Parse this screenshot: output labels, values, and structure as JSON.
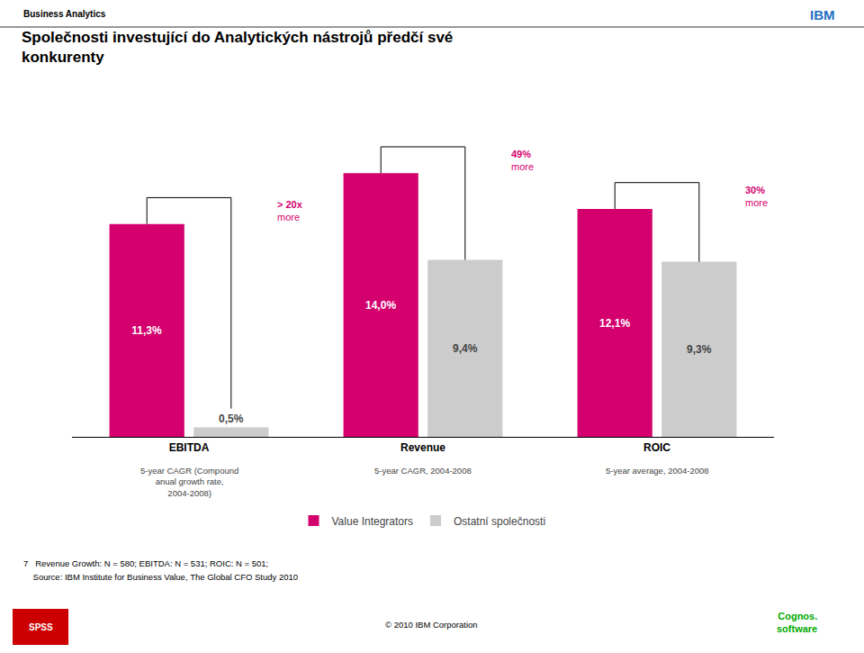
{
  "chart_data": {
    "type": "bar",
    "title": "Společnosti investující do Analytických nástrojů předčí své\nkonkurenty",
    "header": "Business Analytics",
    "categories": [
      "EBITDA",
      "Revenue",
      "ROIC"
    ],
    "category_notes": [
      "5-year CAGR (Compound\nanual growth rate,\n2004-2008)",
      "5-year CAGR, 2004-2008",
      "5-year average, 2004-2008"
    ],
    "series": [
      {
        "name": "Value Integrators",
        "color": "#d4006e",
        "values": [
          11.3,
          14.0,
          12.1
        ],
        "value_labels": [
          "11,3%",
          "14,0%",
          "12,1%"
        ]
      },
      {
        "name": "Ostatní společnosti",
        "color": "#cccccc",
        "values": [
          0.5,
          9.4,
          9.3
        ],
        "value_labels": [
          "0,5%",
          "9,4%",
          "9,3%"
        ]
      }
    ],
    "annotations": [
      "> 20x\nmore",
      "49%\nmore",
      "30%\nmore"
    ],
    "footnotes": [
      "7   Revenue Growth: N = 580; EBITDA: N = 531; ROIC: N = 501;",
      "    Source: IBM Institute for Business Value, The Global CFO Study 2010"
    ],
    "copyright": "© 2010 IBM Corporation",
    "logos": [
      {
        "text": "IBM",
        "color": "#1F70C1"
      },
      {
        "text": "SPSS",
        "color": "#cc0000"
      },
      {
        "text": "Cognos.\nsoftware",
        "color": "#00aa00"
      }
    ],
    "ylim": [
      0,
      16.5
    ],
    "data_labels": true,
    "tick_labels": "x",
    "grid": false,
    "legend": "bottom"
  }
}
